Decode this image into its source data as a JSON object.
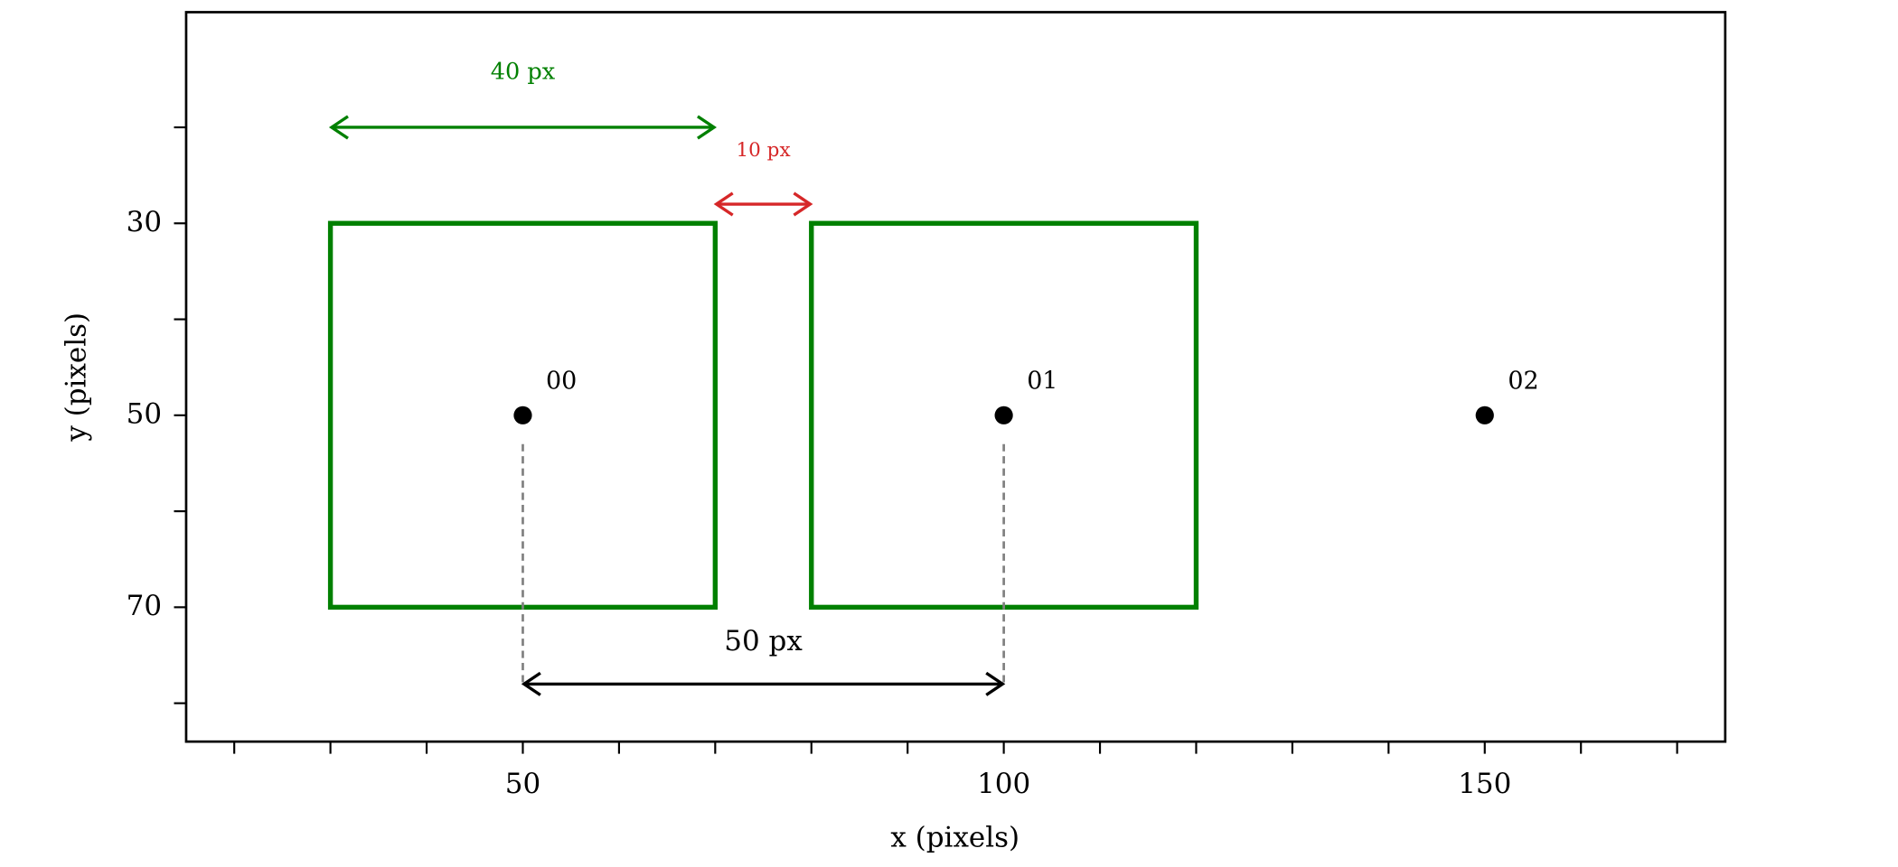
{
  "chart_data": {
    "type": "scatter",
    "xlabel": "x (pixels)",
    "ylabel": "y (pixels)",
    "xlim": [
      15,
      175
    ],
    "ylim": [
      84,
      8
    ],
    "xticks": [
      50,
      100,
      150
    ],
    "xminorticks": [
      20,
      30,
      40,
      60,
      70,
      80,
      90,
      110,
      120,
      130,
      140,
      160,
      170
    ],
    "yticks": [
      30,
      50,
      70
    ],
    "yminorticks": [
      20,
      40,
      60,
      80
    ],
    "x": [
      50,
      100,
      150
    ],
    "y": [
      50,
      50,
      50
    ],
    "point_labels": [
      "00",
      "01",
      "02"
    ],
    "color": "#000000",
    "boxes": [
      {
        "x0": 30,
        "x1": 70,
        "y0": 30,
        "y1": 70,
        "color": "#008000"
      },
      {
        "x0": 80,
        "x1": 120,
        "y0": 30,
        "y1": 70,
        "color": "#008000"
      }
    ],
    "dimensions": [
      {
        "label": "40 px",
        "x0": 30,
        "x1": 70,
        "y": 20,
        "color": "#008000"
      },
      {
        "label": "10 px",
        "x0": 70,
        "x1": 80,
        "y": 28,
        "color": "#d62728"
      },
      {
        "label": "50 px",
        "x0": 50,
        "x1": 100,
        "y": 78,
        "color": "#000000",
        "guide_from": 53
      }
    ]
  }
}
